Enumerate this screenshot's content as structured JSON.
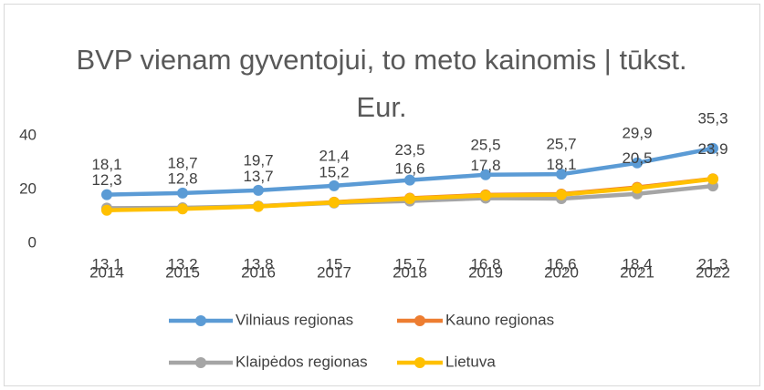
{
  "chart_data": {
    "type": "line",
    "title": "BVP vienam gyventojui, to meto kainomis | tūkst. Eur.",
    "categories": [
      "2014",
      "2015",
      "2016",
      "2017",
      "2018",
      "2019",
      "2020",
      "2021",
      "2022"
    ],
    "series": [
      {
        "name": "Vilniaus regionas",
        "color": "#5b9bd5",
        "values": [
          18.1,
          18.7,
          19.7,
          21.4,
          23.5,
          25.5,
          25.7,
          29.9,
          35.3
        ],
        "value_labels": [
          "18,1",
          "18,7",
          "19,7",
          "21,4",
          "23,5",
          "25,5",
          "25,7",
          "29,9",
          "35,3"
        ]
      },
      {
        "name": "Kauno regionas",
        "color": "#ed7d31",
        "values": [
          12.6,
          13.0,
          13.8,
          15.3,
          16.8,
          18.0,
          18.3,
          20.8,
          24.0
        ]
      },
      {
        "name": "Klaipėdos regionas",
        "color": "#a5a5a5",
        "values": [
          13.1,
          13.2,
          13.8,
          15,
          15.7,
          16.8,
          16.6,
          18.4,
          21.3
        ],
        "value_labels": [
          "13,1",
          "13,2",
          "13,8",
          "15",
          "15,7",
          "16,8",
          "16,6",
          "18,4",
          "21,3"
        ]
      },
      {
        "name": "Lietuva",
        "color": "#ffc000",
        "values": [
          12.3,
          12.8,
          13.7,
          15.2,
          16.6,
          17.8,
          18.1,
          20.5,
          23.9
        ],
        "value_labels": [
          "12,3",
          "12,8",
          "13,7",
          "15,2",
          "16,6",
          "17,8",
          "18,1",
          "20,5",
          "23,9"
        ]
      }
    ],
    "ylim": [
      0,
      40
    ],
    "yticks": [
      0,
      20,
      40
    ],
    "grid": false
  }
}
